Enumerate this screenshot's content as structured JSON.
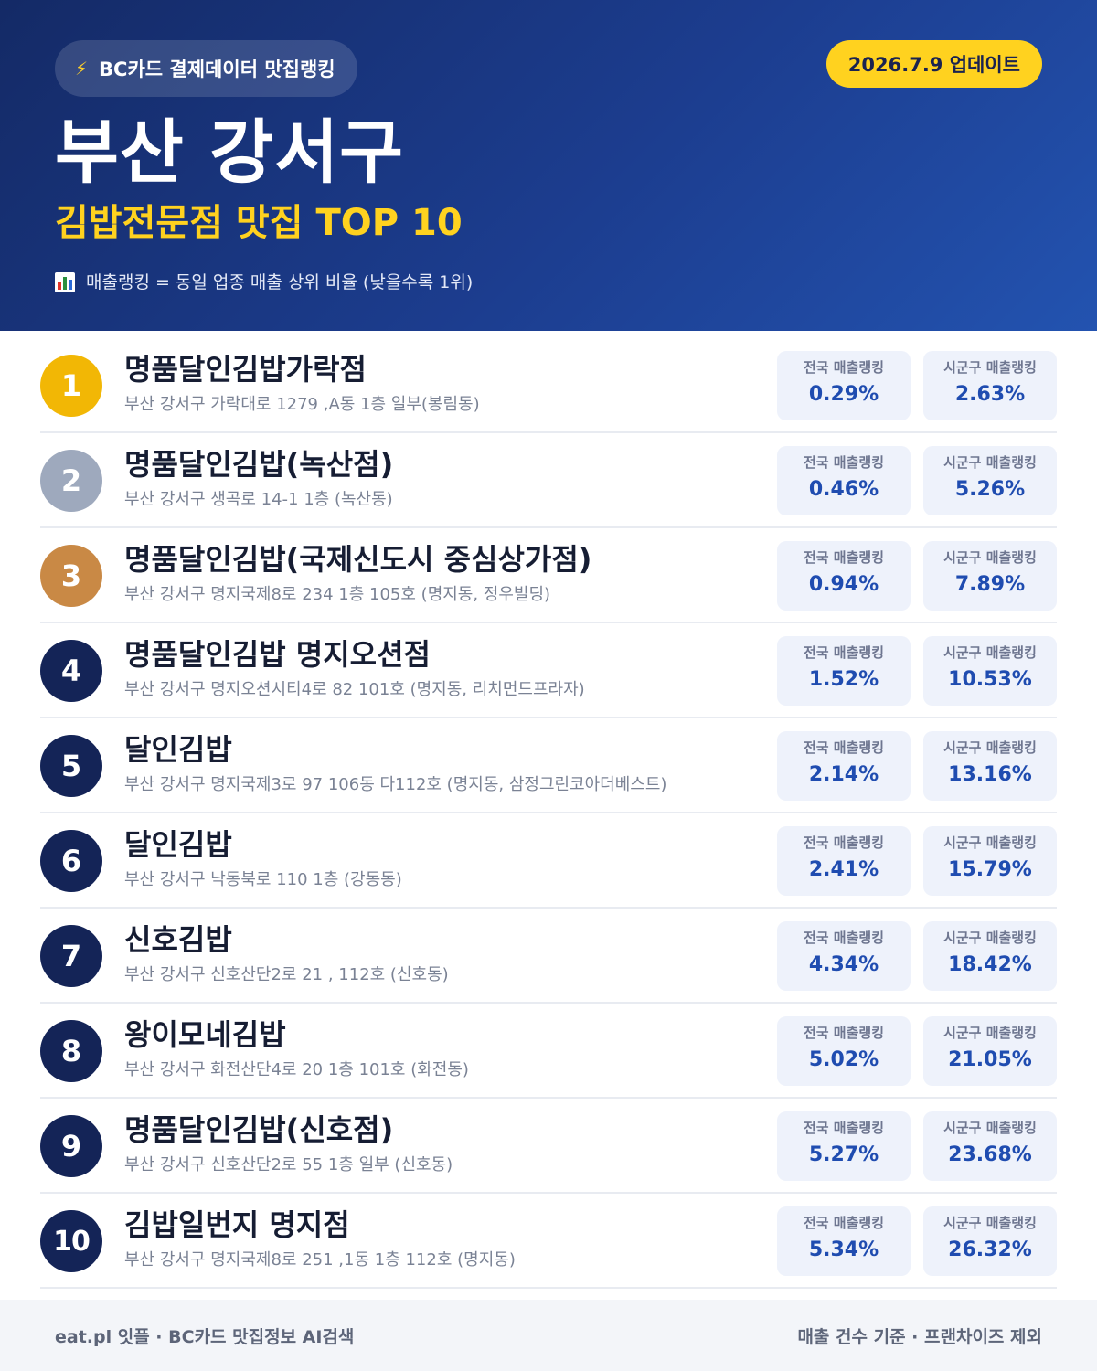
{
  "header": {
    "brand_label": "BC카드 결제데이터 맛집랭킹",
    "brand_icon": "lightning-icon",
    "update_label": "2026.7.9 업데이트",
    "region_title": "부산 강서구",
    "sub_title": "김밥전문점 맛집 TOP 10",
    "note_icon": "bar-chart-icon",
    "note": "매출랭킹 = 동일 업종 매출 상위 비율 (낮을수록 1위)"
  },
  "labels": {
    "national": "전국 매출랭킹",
    "local": "시군구 매출랭킹"
  },
  "items": [
    {
      "rank": "1",
      "name": "명품달인김밥가락점",
      "address": "부산 강서구 가락대로 1279 ,A동 1층 일부(봉림동)",
      "national": "0.29%",
      "local": "2.63%"
    },
    {
      "rank": "2",
      "name": "명품달인김밥(녹산점)",
      "address": "부산 강서구 생곡로 14-1 1층 (녹산동)",
      "national": "0.46%",
      "local": "5.26%"
    },
    {
      "rank": "3",
      "name": "명품달인김밥(국제신도시 중심상가점)",
      "address": "부산 강서구 명지국제8로 234 1층 105호 (명지동, 정우빌딩)",
      "national": "0.94%",
      "local": "7.89%"
    },
    {
      "rank": "4",
      "name": "명품달인김밥 명지오션점",
      "address": "부산 강서구 명지오션시티4로 82 101호 (명지동, 리치먼드프라자)",
      "national": "1.52%",
      "local": "10.53%"
    },
    {
      "rank": "5",
      "name": "달인김밥",
      "address": "부산 강서구 명지국제3로 97 106동 다112호 (명지동, 삼정그린코아더베스트)",
      "national": "2.14%",
      "local": "13.16%"
    },
    {
      "rank": "6",
      "name": "달인김밥",
      "address": "부산 강서구 낙동북로 110 1층 (강동동)",
      "national": "2.41%",
      "local": "15.79%"
    },
    {
      "rank": "7",
      "name": "신호김밥",
      "address": "부산 강서구 신호산단2로 21 , 112호 (신호동)",
      "national": "4.34%",
      "local": "18.42%"
    },
    {
      "rank": "8",
      "name": "왕이모네김밥",
      "address": "부산 강서구 화전산단4로 20 1층 101호 (화전동)",
      "national": "5.02%",
      "local": "21.05%"
    },
    {
      "rank": "9",
      "name": "명품달인김밥(신호점)",
      "address": "부산 강서구 신호산단2로 55 1층 일부 (신호동)",
      "national": "5.27%",
      "local": "23.68%"
    },
    {
      "rank": "10",
      "name": "김밥일번지 명지점",
      "address": "부산 강서구 명지국제8로 251 ,1동 1층 112호 (명지동)",
      "national": "5.34%",
      "local": "26.32%"
    }
  ],
  "footer": {
    "left": "eat.pl 잇플 · BC카드 맛집정보 AI검색",
    "right": "매출 건수 기준 · 프랜차이즈 제외"
  },
  "colors": {
    "header_start": "#142a66",
    "header_end": "#2353b0",
    "accent_yellow": "#ffd21f",
    "gold": "#f2b705",
    "silver": "#9ea9bd",
    "bronze": "#c98945",
    "navy": "#142457",
    "stat_value": "#1f4cb0"
  }
}
